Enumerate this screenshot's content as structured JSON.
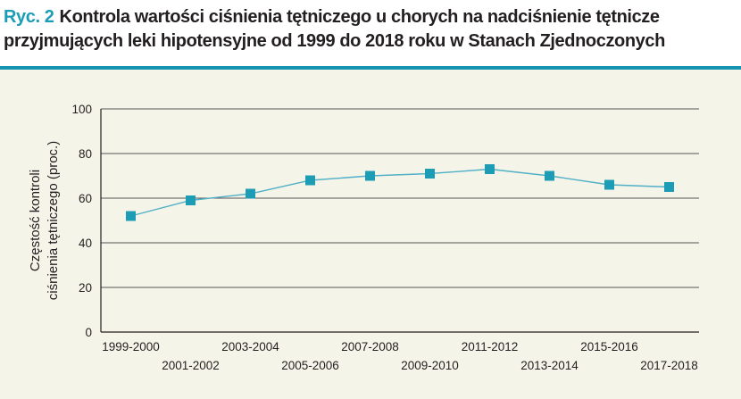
{
  "figure": {
    "label": "Ryc. 2",
    "title": "Kontrola wartości ciśnienia tętniczego u chorych na nadciśnienie tętnicze przyjmujących leki hipotensyjne od 1999 do 2018 roku w Stanach Zjednoczonych"
  },
  "colors": {
    "accent": "#1b9cb7",
    "rule": "#1795b0",
    "panel": "#f5f4e9",
    "line": "#4fb0c6",
    "marker": "#1d9cb5",
    "axis": "#231f20",
    "grid": "#231f20"
  },
  "chart_data": {
    "type": "line",
    "title": "",
    "ylabel_lines": [
      "Częstość kontroli",
      "ciśnienia tętniczego (proc.)"
    ],
    "ylim": [
      0,
      100
    ],
    "yticks": [
      0,
      20,
      40,
      60,
      80,
      100
    ],
    "grid": true,
    "legend": "none",
    "categories": [
      "1999-2000",
      "2001-2002",
      "2003-2004",
      "2005-2006",
      "2007-2008",
      "2009-2010",
      "2011-2012",
      "2013-2014",
      "2015-2016",
      "2017-2018"
    ],
    "series": [
      {
        "values": [
          52,
          59,
          62,
          68,
          70,
          71,
          73,
          70,
          66,
          65
        ]
      }
    ]
  }
}
